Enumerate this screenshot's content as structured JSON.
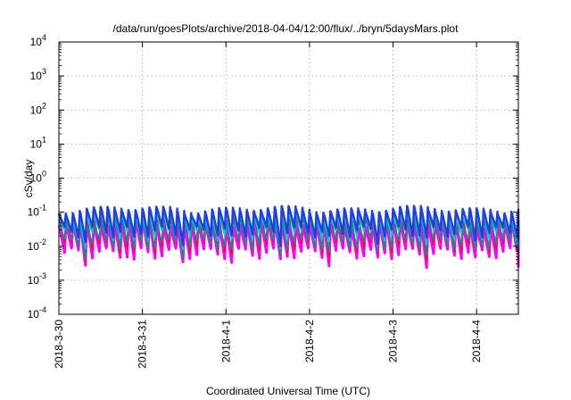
{
  "chart_data": {
    "type": "line",
    "title": "/data/run/goesPlots/archive/2018-04-04/12:00/flux/../bryn/5daysMars.plot",
    "xlabel": "Coordinated Universal Time (UTC)",
    "ylabel": "cSv/day",
    "yscale": "log",
    "ylim": [
      0.0001,
      10000
    ],
    "xlim": [
      "2018-03-30T00:00",
      "2018-04-04T12:00"
    ],
    "grid": true,
    "legend": "none",
    "x_ticks": [
      "2018-3-30",
      "2018-3-31",
      "2018-4-1",
      "2018-4-2",
      "2018-4-3",
      "2018-4-4"
    ],
    "y_ticks": [
      {
        "value": 0.0001,
        "base": "10",
        "exp": "-4"
      },
      {
        "value": 0.001,
        "base": "10",
        "exp": "-3"
      },
      {
        "value": 0.01,
        "base": "10",
        "exp": "-2"
      },
      {
        "value": 0.1,
        "base": "10",
        "exp": "-1"
      },
      {
        "value": 1,
        "base": "10",
        "exp": "0"
      },
      {
        "value": 10,
        "base": "10",
        "exp": "1"
      },
      {
        "value": 100,
        "base": "10",
        "exp": "2"
      },
      {
        "value": 1000,
        "base": "10",
        "exp": "3"
      },
      {
        "value": 10000,
        "base": "10",
        "exp": "4"
      }
    ],
    "cycle_hours": 2,
    "series": [
      {
        "color": "#ff00ff",
        "peak": 0.045,
        "trough": 0.0065,
        "width": 3
      },
      {
        "color": "#ee1111",
        "peak": 0.08,
        "trough": 0.01,
        "width": 1.5
      },
      {
        "color": "#009e73",
        "peak": 0.055,
        "trough": 0.012,
        "width": 1.5
      },
      {
        "color": "#00c8e8",
        "peak": 0.085,
        "trough": 0.022,
        "width": 2
      },
      {
        "color": "#1f3fe0",
        "peak": 0.12,
        "trough": 0.028,
        "width": 2.5
      }
    ]
  }
}
